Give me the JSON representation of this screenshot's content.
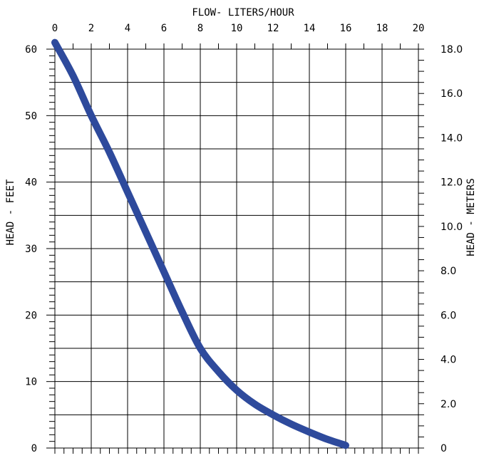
{
  "chart_data": {
    "type": "line",
    "title": "FLOW- LITERS/HOUR",
    "xlabel": "FLOW- LITERS/HOUR",
    "ylabel": "HEAD - FEET",
    "y2label": "HEAD - METERS",
    "xlim": [
      0,
      20
    ],
    "ylim": [
      0,
      60
    ],
    "y2lim": [
      0,
      18.0
    ],
    "x_ticks": [
      0,
      2,
      4,
      6,
      8,
      10,
      12,
      14,
      16,
      18,
      20
    ],
    "y_ticks": [
      0,
      10,
      20,
      30,
      40,
      50,
      60
    ],
    "y2_ticks": [
      "0",
      "2.0",
      "4.0",
      "6.0",
      "8.0",
      "10.0",
      "12.0",
      "14.0",
      "16.0",
      "18.0"
    ],
    "grid": true,
    "line_color": "#2e4a9c",
    "series": [
      {
        "x": [
          0,
          1,
          2,
          3,
          4,
          5,
          6,
          7,
          8,
          9,
          10,
          11,
          12,
          13,
          14,
          15,
          16
        ],
        "y": [
          61,
          56,
          50,
          44.5,
          38.5,
          32.5,
          26.5,
          20.5,
          15,
          11.5,
          8.7,
          6.6,
          5.0,
          3.6,
          2.4,
          1.3,
          0.4
        ]
      }
    ]
  }
}
